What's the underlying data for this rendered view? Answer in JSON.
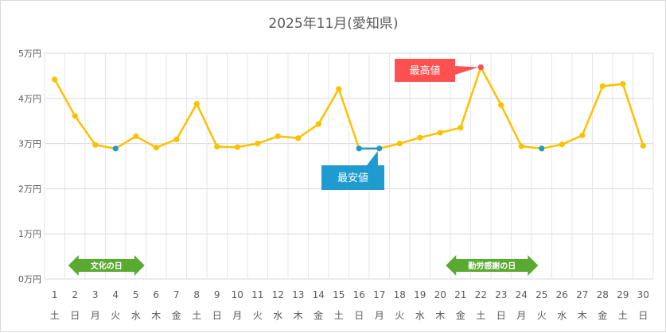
{
  "chart_data": {
    "type": "line",
    "title": "2025年11月(愛知県)",
    "x": [
      "1",
      "2",
      "3",
      "4",
      "5",
      "6",
      "7",
      "8",
      "9",
      "10",
      "11",
      "12",
      "13",
      "14",
      "15",
      "16",
      "17",
      "18",
      "19",
      "20",
      "21",
      "22",
      "23",
      "24",
      "25",
      "26",
      "27",
      "28",
      "29",
      "30"
    ],
    "weekdays": [
      "土",
      "日",
      "月",
      "火",
      "水",
      "木",
      "金",
      "土",
      "日",
      "月",
      "火",
      "水",
      "木",
      "金",
      "土",
      "日",
      "月",
      "火",
      "水",
      "木",
      "金",
      "土",
      "日",
      "月",
      "火",
      "水",
      "木",
      "金",
      "土",
      "日"
    ],
    "values": [
      44200,
      36100,
      29700,
      28900,
      31600,
      29100,
      30900,
      38800,
      29300,
      29200,
      30000,
      31600,
      31200,
      34300,
      42100,
      28900,
      28900,
      30000,
      31300,
      32400,
      33500,
      46900,
      38500,
      29400,
      28900,
      29800,
      31800,
      42700,
      43200,
      29500
    ],
    "yticks": [
      "0万円",
      "1万円",
      "2万円",
      "3万円",
      "4万円",
      "5万円"
    ],
    "ylim": [
      0,
      50000
    ],
    "grid": true,
    "line_color": "#ffc000",
    "min_color": "#1f9bcf",
    "max_color": "#ff5050",
    "min_points": [
      "16",
      "17",
      "4",
      "25"
    ],
    "max_point": "22",
    "annotations": {
      "max_label": "最高値",
      "min_label": "最安値"
    },
    "holidays": [
      {
        "label": "文化の日",
        "day": "4"
      },
      {
        "label": "勤労感謝の日",
        "day": "23"
      }
    ],
    "holiday_color": "#5aaa32"
  }
}
